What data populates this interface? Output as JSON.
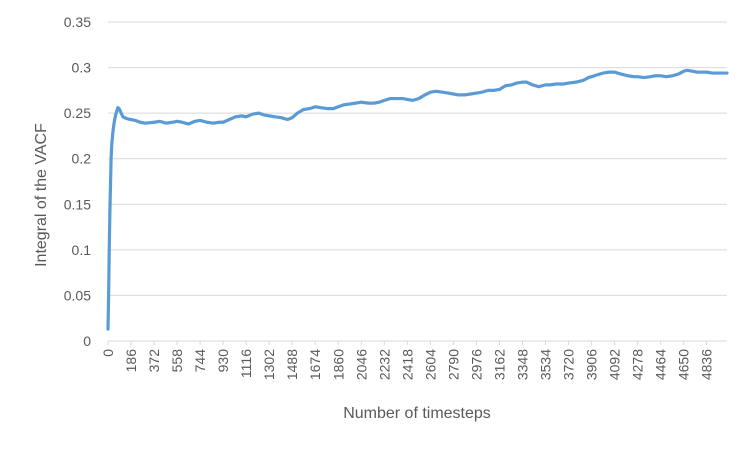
{
  "chart_data": {
    "type": "line",
    "title": "",
    "xlabel": "Number of timesteps",
    "ylabel": "Integral of the VACF",
    "xlim": [
      0,
      5000
    ],
    "ylim": [
      0,
      0.35
    ],
    "y_ticks": [
      "0",
      "0.05",
      "0.1",
      "0.15",
      "0.2",
      "0.25",
      "0.3",
      "0.35"
    ],
    "x_ticks": [
      "0",
      "186",
      "372",
      "558",
      "744",
      "930",
      "1116",
      "1302",
      "1488",
      "1674",
      "1860",
      "2046",
      "2232",
      "2418",
      "2604",
      "2790",
      "2976",
      "3162",
      "3348",
      "3534",
      "3720",
      "3906",
      "4092",
      "4278",
      "4464",
      "4650",
      "4836"
    ],
    "grid": true,
    "legend": "none",
    "colors": {
      "series": "#5b9bd5",
      "grid": "#d9d9d9",
      "text": "#595959"
    },
    "series": [
      {
        "x": [
          0,
          5,
          10,
          15,
          20,
          25,
          30,
          40,
          50,
          60,
          70,
          80,
          90,
          100,
          120,
          150,
          186,
          220,
          260,
          300,
          372,
          420,
          470,
          520,
          558,
          600,
          650,
          700,
          744,
          800,
          850,
          900,
          930,
          980,
          1030,
          1080,
          1116,
          1170,
          1220,
          1260,
          1302,
          1350,
          1400,
          1450,
          1488,
          1530,
          1580,
          1630,
          1674,
          1720,
          1770,
          1820,
          1860,
          1900,
          1950,
          2000,
          2046,
          2100,
          2150,
          2190,
          2232,
          2280,
          2330,
          2380,
          2418,
          2460,
          2510,
          2560,
          2604,
          2650,
          2700,
          2750,
          2790,
          2830,
          2880,
          2930,
          2976,
          3020,
          3070,
          3120,
          3162,
          3210,
          3260,
          3300,
          3348,
          3380,
          3430,
          3480,
          3534,
          3570,
          3620,
          3680,
          3720,
          3780,
          3840,
          3880,
          3906,
          3950,
          4000,
          4050,
          4092,
          4140,
          4200,
          4250,
          4278,
          4330,
          4380,
          4420,
          4464,
          4510,
          4560,
          4610,
          4650,
          4680,
          4720,
          4760,
          4800,
          4836,
          4880,
          4930,
          4980,
          5000
        ],
        "y": [
          0.013,
          0.05,
          0.1,
          0.14,
          0.17,
          0.2,
          0.215,
          0.23,
          0.24,
          0.247,
          0.252,
          0.256,
          0.255,
          0.252,
          0.246,
          0.244,
          0.243,
          0.242,
          0.24,
          0.239,
          0.24,
          0.241,
          0.239,
          0.24,
          0.241,
          0.24,
          0.238,
          0.241,
          0.242,
          0.24,
          0.239,
          0.24,
          0.24,
          0.243,
          0.246,
          0.247,
          0.246,
          0.249,
          0.25,
          0.248,
          0.247,
          0.246,
          0.245,
          0.243,
          0.245,
          0.25,
          0.254,
          0.255,
          0.257,
          0.256,
          0.255,
          0.255,
          0.257,
          0.259,
          0.26,
          0.261,
          0.262,
          0.261,
          0.261,
          0.262,
          0.264,
          0.266,
          0.266,
          0.266,
          0.265,
          0.264,
          0.266,
          0.27,
          0.273,
          0.274,
          0.273,
          0.272,
          0.271,
          0.27,
          0.27,
          0.271,
          0.272,
          0.273,
          0.275,
          0.275,
          0.276,
          0.28,
          0.281,
          0.283,
          0.284,
          0.284,
          0.281,
          0.279,
          0.281,
          0.281,
          0.282,
          0.282,
          0.283,
          0.284,
          0.286,
          0.289,
          0.29,
          0.292,
          0.294,
          0.295,
          0.295,
          0.293,
          0.291,
          0.29,
          0.29,
          0.289,
          0.29,
          0.291,
          0.291,
          0.29,
          0.291,
          0.293,
          0.296,
          0.297,
          0.296,
          0.295,
          0.295,
          0.295,
          0.294,
          0.294,
          0.294,
          0.294
        ]
      }
    ]
  }
}
